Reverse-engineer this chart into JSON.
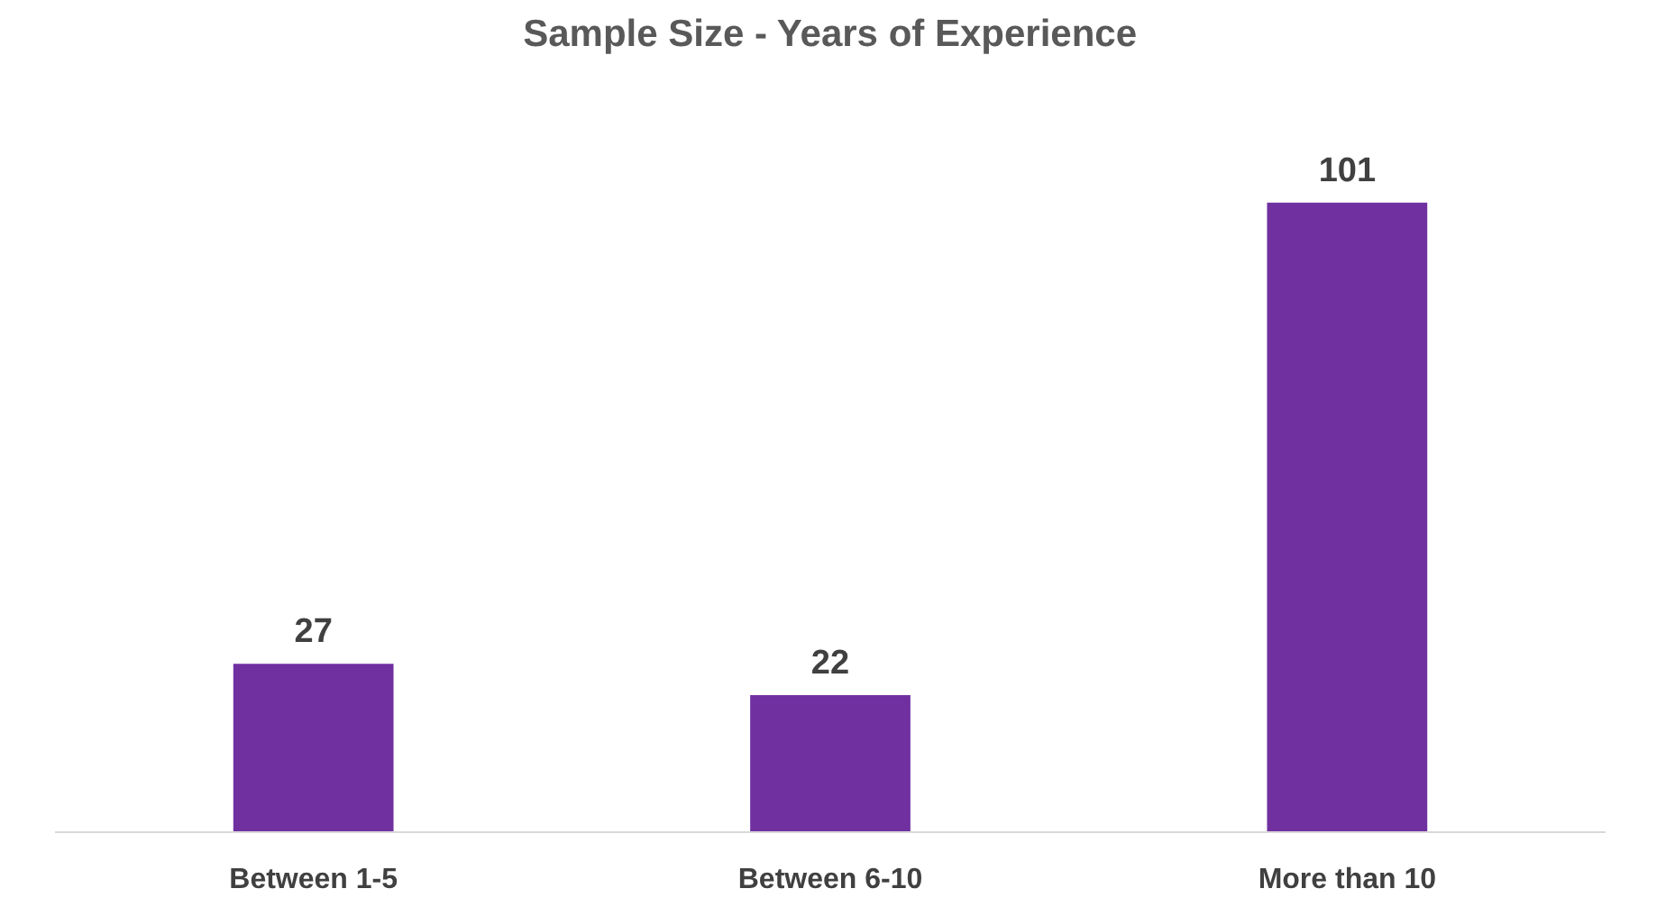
{
  "chart_data": {
    "type": "bar",
    "title": "Sample Size - Years of Experience",
    "categories": [
      "Between 1-5",
      "Between 6-10",
      "More than 10"
    ],
    "values": [
      27,
      22,
      101
    ],
    "color": "#7030a0",
    "data_labels": true,
    "grid": false
  }
}
